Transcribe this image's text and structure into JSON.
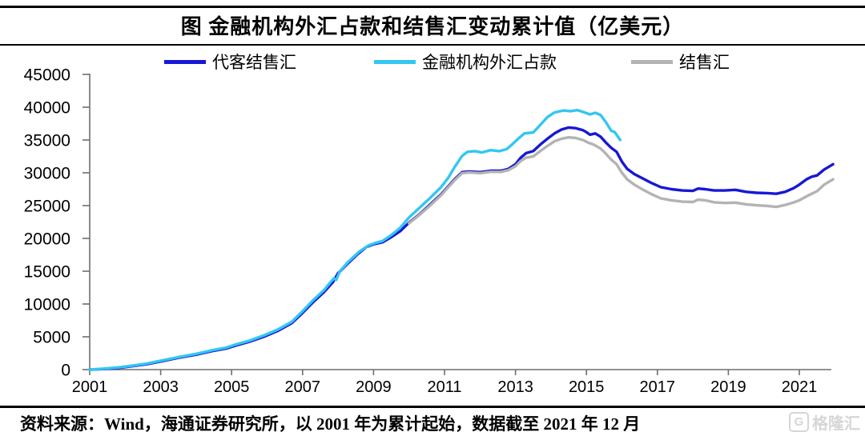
{
  "title": "图 金融机构外汇占款和结售汇变动累计值（亿美元）",
  "legend": [
    {
      "label": "代客结售汇",
      "color": "#1717d6"
    },
    {
      "label": "金融机构外汇占款",
      "color": "#33c6f0"
    },
    {
      "label": "结售汇",
      "color": "#b3b3b3"
    }
  ],
  "source_note": "资料来源：Wind，海通证券研究所，以 2001 年为累计起始，数据截至 2021 年 12 月",
  "watermark": {
    "logo_letter": "G",
    "text": "格隆汇"
  },
  "chart_data": {
    "type": "line",
    "title": "图 金融机构外汇占款和结售汇变动累计值（亿美元）",
    "xlabel": "",
    "ylabel": "",
    "unit": "亿美元",
    "ylim": [
      0,
      45000
    ],
    "ytick_step": 5000,
    "xlim": [
      2001,
      2022
    ],
    "xticks": [
      2001,
      2003,
      2005,
      2007,
      2009,
      2011,
      2013,
      2015,
      2017,
      2019,
      2021
    ],
    "grid": false,
    "legend_position": "top",
    "axis_color": "#6e6e6e",
    "series": [
      {
        "name": "代客结售汇",
        "color": "#1717d6",
        "points": [
          [
            2001,
            0
          ],
          [
            2001.4,
            100
          ],
          [
            2001.8,
            260
          ],
          [
            2002.2,
            520
          ],
          [
            2002.6,
            820
          ],
          [
            2003,
            1250
          ],
          [
            2003.5,
            1800
          ],
          [
            2004,
            2280
          ],
          [
            2004.5,
            2880
          ],
          [
            2004.85,
            3220
          ],
          [
            2005.1,
            3650
          ],
          [
            2005.5,
            4250
          ],
          [
            2005.9,
            5000
          ],
          [
            2006.3,
            5900
          ],
          [
            2006.7,
            7100
          ],
          [
            2007,
            8650
          ],
          [
            2007.3,
            10300
          ],
          [
            2007.6,
            11800
          ],
          [
            2007.85,
            13300
          ],
          [
            2008,
            14700
          ],
          [
            2008.3,
            16300
          ],
          [
            2008.55,
            17600
          ],
          [
            2008.8,
            18700
          ],
          [
            2009,
            19100
          ],
          [
            2009.25,
            19400
          ],
          [
            2009.5,
            20200
          ],
          [
            2009.75,
            21100
          ],
          [
            2010,
            22400
          ],
          [
            2010.3,
            23700
          ],
          [
            2010.6,
            25200
          ],
          [
            2010.9,
            26700
          ],
          [
            2011.1,
            27900
          ],
          [
            2011.3,
            29100
          ],
          [
            2011.5,
            30100
          ],
          [
            2011.7,
            30200
          ],
          [
            2012,
            30100
          ],
          [
            2012.3,
            30300
          ],
          [
            2012.6,
            30300
          ],
          [
            2012.8,
            30600
          ],
          [
            2013,
            31300
          ],
          [
            2013.15,
            32300
          ],
          [
            2013.3,
            33000
          ],
          [
            2013.5,
            33300
          ],
          [
            2013.7,
            34300
          ],
          [
            2013.9,
            35200
          ],
          [
            2014.1,
            36000
          ],
          [
            2014.3,
            36600
          ],
          [
            2014.5,
            36900
          ],
          [
            2014.7,
            36800
          ],
          [
            2014.9,
            36500
          ],
          [
            2015,
            36200
          ],
          [
            2015.1,
            35800
          ],
          [
            2015.25,
            36000
          ],
          [
            2015.4,
            35500
          ],
          [
            2015.55,
            34600
          ],
          [
            2015.7,
            33800
          ],
          [
            2015.85,
            33200
          ],
          [
            2016,
            31700
          ],
          [
            2016.15,
            30600
          ],
          [
            2016.35,
            29800
          ],
          [
            2016.6,
            29100
          ],
          [
            2016.85,
            28400
          ],
          [
            2017.1,
            27800
          ],
          [
            2017.4,
            27500
          ],
          [
            2017.7,
            27300
          ],
          [
            2018,
            27250
          ],
          [
            2018.15,
            27600
          ],
          [
            2018.35,
            27500
          ],
          [
            2018.6,
            27300
          ],
          [
            2018.9,
            27300
          ],
          [
            2019.2,
            27400
          ],
          [
            2019.5,
            27100
          ],
          [
            2019.8,
            26950
          ],
          [
            2020.1,
            26900
          ],
          [
            2020.35,
            26800
          ],
          [
            2020.6,
            27100
          ],
          [
            2020.85,
            27700
          ],
          [
            2021,
            28200
          ],
          [
            2021.2,
            29000
          ],
          [
            2021.35,
            29400
          ],
          [
            2021.5,
            29600
          ],
          [
            2021.7,
            30500
          ],
          [
            2021.95,
            31300
          ]
        ]
      },
      {
        "name": "结售汇",
        "color": "#b3b3b3",
        "points": [
          [
            2010,
            22300
          ],
          [
            2010.3,
            23600
          ],
          [
            2010.6,
            25050
          ],
          [
            2010.9,
            26550
          ],
          [
            2011.1,
            27750
          ],
          [
            2011.3,
            28950
          ],
          [
            2011.5,
            29950
          ],
          [
            2011.7,
            30050
          ],
          [
            2012,
            29950
          ],
          [
            2012.3,
            30150
          ],
          [
            2012.6,
            30150
          ],
          [
            2012.8,
            30400
          ],
          [
            2013,
            31000
          ],
          [
            2013.15,
            31800
          ],
          [
            2013.3,
            32300
          ],
          [
            2013.5,
            32500
          ],
          [
            2013.7,
            33300
          ],
          [
            2013.9,
            34100
          ],
          [
            2014.1,
            34800
          ],
          [
            2014.3,
            35200
          ],
          [
            2014.5,
            35400
          ],
          [
            2014.7,
            35300
          ],
          [
            2014.9,
            35000
          ],
          [
            2015.05,
            34600
          ],
          [
            2015.2,
            34300
          ],
          [
            2015.4,
            33700
          ],
          [
            2015.55,
            32900
          ],
          [
            2015.7,
            32000
          ],
          [
            2015.85,
            31300
          ],
          [
            2016,
            30000
          ],
          [
            2016.15,
            29000
          ],
          [
            2016.35,
            28200
          ],
          [
            2016.6,
            27400
          ],
          [
            2016.85,
            26700
          ],
          [
            2017.1,
            26100
          ],
          [
            2017.4,
            25800
          ],
          [
            2017.7,
            25600
          ],
          [
            2018,
            25550
          ],
          [
            2018.15,
            25900
          ],
          [
            2018.35,
            25800
          ],
          [
            2018.6,
            25500
          ],
          [
            2018.9,
            25400
          ],
          [
            2019.2,
            25450
          ],
          [
            2019.5,
            25200
          ],
          [
            2019.8,
            25050
          ],
          [
            2020.1,
            24950
          ],
          [
            2020.35,
            24800
          ],
          [
            2020.6,
            25100
          ],
          [
            2020.85,
            25500
          ],
          [
            2021,
            25800
          ],
          [
            2021.2,
            26400
          ],
          [
            2021.35,
            26800
          ],
          [
            2021.5,
            27200
          ],
          [
            2021.7,
            28200
          ],
          [
            2021.95,
            29000
          ]
        ]
      },
      {
        "name": "金融机构外汇占款",
        "color": "#33c6f0",
        "points": [
          [
            2001,
            0
          ],
          [
            2001.4,
            150
          ],
          [
            2001.8,
            330
          ],
          [
            2002.2,
            600
          ],
          [
            2002.6,
            900
          ],
          [
            2003,
            1350
          ],
          [
            2003.5,
            1900
          ],
          [
            2004,
            2400
          ],
          [
            2004.5,
            3000
          ],
          [
            2004.85,
            3350
          ],
          [
            2005.1,
            3800
          ],
          [
            2005.5,
            4400
          ],
          [
            2005.9,
            5200
          ],
          [
            2006.3,
            6100
          ],
          [
            2006.7,
            7300
          ],
          [
            2007,
            8900
          ],
          [
            2007.3,
            10600
          ],
          [
            2007.6,
            12100
          ],
          [
            2007.8,
            13400
          ],
          [
            2007.88,
            13900
          ],
          [
            2007.95,
            13700
          ],
          [
            2008.05,
            15000
          ],
          [
            2008.3,
            16500
          ],
          [
            2008.6,
            18000
          ],
          [
            2008.85,
            18900
          ],
          [
            2009.05,
            19300
          ],
          [
            2009.25,
            19600
          ],
          [
            2009.5,
            20500
          ],
          [
            2009.75,
            21600
          ],
          [
            2010,
            23200
          ],
          [
            2010.3,
            24700
          ],
          [
            2010.6,
            26200
          ],
          [
            2010.9,
            27800
          ],
          [
            2011.1,
            29200
          ],
          [
            2011.3,
            31000
          ],
          [
            2011.5,
            32600
          ],
          [
            2011.65,
            33200
          ],
          [
            2011.85,
            33300
          ],
          [
            2012.05,
            33100
          ],
          [
            2012.3,
            33450
          ],
          [
            2012.55,
            33300
          ],
          [
            2012.75,
            33600
          ],
          [
            2012.9,
            34300
          ],
          [
            2013.1,
            35300
          ],
          [
            2013.25,
            36000
          ],
          [
            2013.5,
            36150
          ],
          [
            2013.7,
            37300
          ],
          [
            2013.9,
            38500
          ],
          [
            2014.1,
            39200
          ],
          [
            2014.35,
            39500
          ],
          [
            2014.55,
            39400
          ],
          [
            2014.75,
            39550
          ],
          [
            2014.95,
            39200
          ],
          [
            2015.1,
            38900
          ],
          [
            2015.25,
            39150
          ],
          [
            2015.4,
            38800
          ],
          [
            2015.55,
            37700
          ],
          [
            2015.7,
            36400
          ],
          [
            2015.8,
            36200
          ],
          [
            2015.95,
            35000
          ]
        ]
      }
    ]
  }
}
